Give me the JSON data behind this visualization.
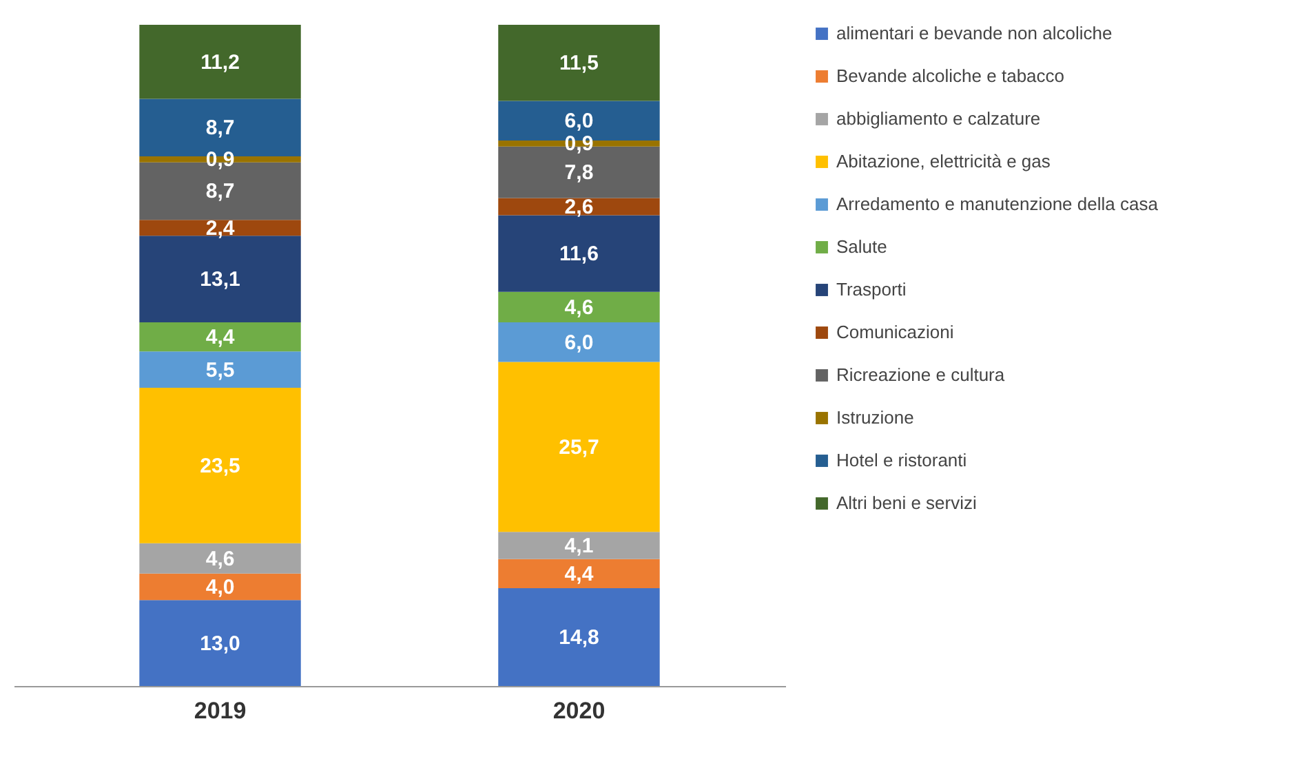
{
  "chart_data": {
    "type": "bar",
    "stacked": true,
    "legend": "right",
    "categories": [
      "2019",
      "2020"
    ],
    "series": [
      {
        "name": "alimentari e bevande non alcoliche",
        "color": "#4472c4",
        "values": [
          13.0,
          14.8
        ],
        "value_labels": [
          "13,0",
          "14,8"
        ]
      },
      {
        "name": "Bevande alcoliche e tabacco",
        "color": "#ed7d31",
        "values": [
          4.0,
          4.4
        ],
        "value_labels": [
          "4,0",
          "4,4"
        ]
      },
      {
        "name": "abbigliamento e calzature",
        "color": "#a5a5a5",
        "values": [
          4.6,
          4.1
        ],
        "value_labels": [
          "4,6",
          "4,1"
        ]
      },
      {
        "name": "Abitazione, elettricità e gas",
        "color": "#ffc000",
        "values": [
          23.5,
          25.7
        ],
        "value_labels": [
          "23,5",
          "25,7"
        ]
      },
      {
        "name": "Arredamento e manutenzione della casa",
        "color": "#5b9bd5",
        "values": [
          5.5,
          6.0
        ],
        "value_labels": [
          "5,5",
          "6,0"
        ]
      },
      {
        "name": "Salute",
        "color": "#70ad47",
        "values": [
          4.4,
          4.6
        ],
        "value_labels": [
          "4,4",
          "4,6"
        ]
      },
      {
        "name": "Trasporti",
        "color": "#264478",
        "values": [
          13.1,
          11.6
        ],
        "value_labels": [
          "13,1",
          "11,6"
        ]
      },
      {
        "name": "Comunicazioni",
        "color": "#9e480e",
        "values": [
          2.4,
          2.6
        ],
        "value_labels": [
          "2,4",
          "2,6"
        ]
      },
      {
        "name": "Ricreazione e cultura",
        "color": "#636363",
        "values": [
          8.7,
          7.8
        ],
        "value_labels": [
          "8,7",
          "7,8"
        ]
      },
      {
        "name": "Istruzione",
        "color": "#997300",
        "values": [
          0.9,
          0.9
        ],
        "value_labels": [
          "0,9",
          "0,9"
        ]
      },
      {
        "name": "Hotel e ristoranti",
        "color": "#255e91",
        "values": [
          8.7,
          6.0
        ],
        "value_labels": [
          "8,7",
          "6,0"
        ]
      },
      {
        "name": "Altri beni e servizi",
        "color": "#43682b",
        "values": [
          11.2,
          11.5
        ],
        "value_labels": [
          "11,2",
          "11,5"
        ]
      }
    ]
  }
}
